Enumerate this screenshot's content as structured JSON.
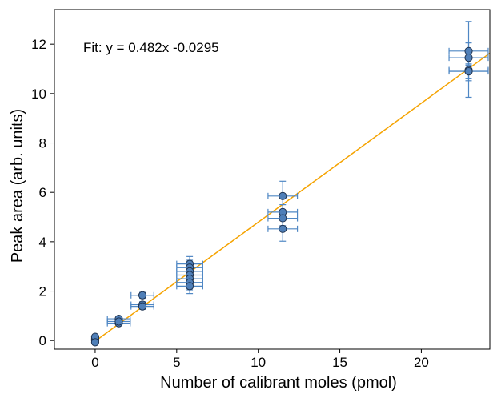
{
  "chart_data": {
    "type": "scatter",
    "xlabel": "Number of calibrant moles  (pmol)",
    "ylabel": "Peak area  (arb. units)",
    "xlim": [
      -2.5,
      24.2
    ],
    "ylim": [
      -0.35,
      13.4
    ],
    "x_ticks": [
      0,
      5,
      10,
      15,
      20
    ],
    "y_ticks": [
      0,
      2,
      4,
      6,
      8,
      10,
      12
    ],
    "grid": false,
    "legend": "none",
    "annotation": "Fit: y = 0.482x -0.0295",
    "fit": {
      "slope": 0.482,
      "intercept": -0.0295
    },
    "series": [
      {
        "points": [
          {
            "x": 0,
            "y": 0.0,
            "xerr": 0,
            "yerr": 0
          },
          {
            "x": 0,
            "y": 0.05,
            "xerr": 0,
            "yerr": 0
          },
          {
            "x": 0,
            "y": 0.1,
            "xerr": 0,
            "yerr": 0
          },
          {
            "x": 0,
            "y": 0.15,
            "xerr": 0,
            "yerr": 0
          },
          {
            "x": 0,
            "y": -0.07,
            "xerr": 0,
            "yerr": 0
          },
          {
            "x": 1.45,
            "y": 0.88,
            "xerr": 0.7,
            "yerr": 0.1
          },
          {
            "x": 1.45,
            "y": 0.7,
            "xerr": 0.7,
            "yerr": 0.1
          },
          {
            "x": 1.45,
            "y": 0.77,
            "xerr": 0.7,
            "yerr": 0.1
          },
          {
            "x": 2.9,
            "y": 1.83,
            "xerr": 0.7,
            "yerr": 0.12
          },
          {
            "x": 2.9,
            "y": 1.45,
            "xerr": 0.7,
            "yerr": 0.12
          },
          {
            "x": 2.9,
            "y": 1.38,
            "xerr": 0.7,
            "yerr": 0.12
          },
          {
            "x": 5.8,
            "y": 3.1,
            "xerr": 0.8,
            "yerr": 0.3
          },
          {
            "x": 5.8,
            "y": 2.95,
            "xerr": 0.8,
            "yerr": 0.3
          },
          {
            "x": 5.8,
            "y": 2.8,
            "xerr": 0.8,
            "yerr": 0.3
          },
          {
            "x": 5.8,
            "y": 2.65,
            "xerr": 0.8,
            "yerr": 0.3
          },
          {
            "x": 5.8,
            "y": 2.5,
            "xerr": 0.8,
            "yerr": 0.3
          },
          {
            "x": 5.8,
            "y": 2.35,
            "xerr": 0.8,
            "yerr": 0.3
          },
          {
            "x": 5.8,
            "y": 2.2,
            "xerr": 0.8,
            "yerr": 0.3
          },
          {
            "x": 11.5,
            "y": 5.85,
            "xerr": 0.9,
            "yerr": 0.6
          },
          {
            "x": 11.5,
            "y": 5.2,
            "xerr": 0.9,
            "yerr": 0.3
          },
          {
            "x": 11.5,
            "y": 4.95,
            "xerr": 0.9,
            "yerr": 0.3
          },
          {
            "x": 11.5,
            "y": 4.52,
            "xerr": 0.9,
            "yerr": 0.5
          },
          {
            "x": 22.9,
            "y": 11.72,
            "xerr": 1.2,
            "yerr": 1.2
          },
          {
            "x": 22.9,
            "y": 11.45,
            "xerr": 1.2,
            "yerr": 0.3
          },
          {
            "x": 22.9,
            "y": 10.95,
            "xerr": 1.2,
            "yerr": 1.1
          },
          {
            "x": 22.9,
            "y": 10.9,
            "xerr": 1.2,
            "yerr": 0.3
          }
        ]
      }
    ]
  },
  "colors": {
    "marker_fill": "#4f7fb8",
    "marker_stroke": "#1f3350",
    "errorbar": "#4f87c4",
    "fit_line": "#f5a300",
    "axis": "#000000"
  }
}
